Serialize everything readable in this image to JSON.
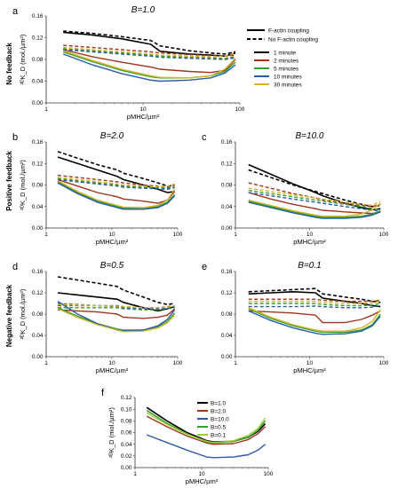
{
  "row_labels": [
    "No feedback",
    "Positive feedback",
    "Negative feedback"
  ],
  "legend_main": {
    "coupling": [
      "F-actin coupling",
      "No F-actin coupling"
    ],
    "times": [
      "1 minute",
      "2 minutes",
      "5 minutes",
      "10 minutes",
      "30 minutes"
    ]
  },
  "legend_f": [
    "B=1.0",
    "B=2.0",
    "B=10.0",
    "B=0.5",
    "B=0.1"
  ],
  "colors": {
    "1 minute": "#000000",
    "2 minutes": "#a2331c",
    "5 minutes": "#33a02c",
    "10 minutes": "#2a5aa8",
    "30 minutes": "#d6b428",
    "B=1.0": "#000000",
    "B=2.0": "#a2331c",
    "B=10.0": "#2a5aa8",
    "B=0.5": "#33a02c",
    "B=0.1": "#9acd32"
  },
  "chart_data": [
    {
      "panel": "a",
      "type": "line",
      "title": "B=1.0",
      "xlabel": "pMHC/µm²",
      "ylabel": "²ᴰK_D (mol./µm²)",
      "xscale": "log",
      "xlim": [
        1,
        100
      ],
      "ylim": [
        0,
        0.16
      ],
      "yticks": [
        "0.00",
        "0.04",
        "0.08",
        "0.12",
        "0.16"
      ],
      "x": [
        1.5,
        3,
        6,
        12,
        15,
        30,
        50,
        70,
        90
      ],
      "series": [
        {
          "time": "1 minute",
          "coupling": "F-actin coupling",
          "values": [
            0.13,
            0.125,
            0.118,
            0.108,
            0.095,
            0.09,
            0.088,
            0.086,
            0.092
          ]
        },
        {
          "time": "1 minute",
          "coupling": "No F-actin coupling",
          "values": [
            0.132,
            0.128,
            0.122,
            0.115,
            0.105,
            0.096,
            0.092,
            0.09,
            0.094
          ]
        },
        {
          "time": "2 minutes",
          "coupling": "F-actin coupling",
          "values": [
            0.098,
            0.085,
            0.075,
            0.066,
            0.062,
            0.058,
            0.056,
            0.06,
            0.08
          ]
        },
        {
          "time": "2 minutes",
          "coupling": "No F-actin coupling",
          "values": [
            0.106,
            0.102,
            0.098,
            0.094,
            0.092,
            0.089,
            0.087,
            0.086,
            0.088
          ]
        },
        {
          "time": "5 minutes",
          "coupling": "F-actin coupling",
          "values": [
            0.094,
            0.076,
            0.06,
            0.048,
            0.046,
            0.046,
            0.05,
            0.058,
            0.075
          ]
        },
        {
          "time": "5 minutes",
          "coupling": "No F-actin coupling",
          "values": [
            0.1,
            0.096,
            0.092,
            0.088,
            0.086,
            0.084,
            0.083,
            0.082,
            0.085
          ]
        },
        {
          "time": "10 minutes",
          "coupling": "F-actin coupling",
          "values": [
            0.09,
            0.07,
            0.054,
            0.042,
            0.04,
            0.042,
            0.046,
            0.055,
            0.07
          ]
        },
        {
          "time": "10 minutes",
          "coupling": "No F-actin coupling",
          "values": [
            0.098,
            0.094,
            0.09,
            0.086,
            0.084,
            0.082,
            0.081,
            0.08,
            0.083
          ]
        },
        {
          "time": "30 minutes",
          "coupling": "F-actin coupling",
          "values": [
            0.096,
            0.078,
            0.062,
            0.05,
            0.047,
            0.046,
            0.05,
            0.062,
            0.082
          ]
        },
        {
          "time": "30 minutes",
          "coupling": "No F-actin coupling",
          "values": [
            0.102,
            0.098,
            0.094,
            0.09,
            0.088,
            0.086,
            0.085,
            0.086,
            0.092
          ]
        }
      ]
    },
    {
      "panel": "b",
      "type": "line",
      "title": "B=2.0",
      "xlabel": "pMHC/µm²",
      "ylabel": "²ᴰK_D (mol./µm²)",
      "xscale": "log",
      "xlim": [
        1,
        100
      ],
      "ylim": [
        0,
        0.16
      ],
      "yticks": [
        "0.00",
        "0.04",
        "0.08",
        "0.12",
        "0.16"
      ],
      "x": [
        1.5,
        3,
        6,
        12,
        15,
        30,
        50,
        70,
        90
      ],
      "series": [
        {
          "time": "1 minute",
          "coupling": "F-actin coupling",
          "values": [
            0.132,
            0.12,
            0.108,
            0.096,
            0.09,
            0.08,
            0.072,
            0.066,
            0.068
          ]
        },
        {
          "time": "1 minute",
          "coupling": "No F-actin coupling",
          "values": [
            0.142,
            0.13,
            0.118,
            0.108,
            0.102,
            0.092,
            0.084,
            0.078,
            0.08
          ]
        },
        {
          "time": "2 minutes",
          "coupling": "F-actin coupling",
          "values": [
            0.09,
            0.078,
            0.066,
            0.058,
            0.054,
            0.05,
            0.046,
            0.052,
            0.068
          ]
        },
        {
          "time": "2 minutes",
          "coupling": "No F-actin coupling",
          "values": [
            0.098,
            0.094,
            0.09,
            0.086,
            0.084,
            0.08,
            0.078,
            0.076,
            0.08
          ]
        },
        {
          "time": "5 minutes",
          "coupling": "F-actin coupling",
          "values": [
            0.086,
            0.066,
            0.05,
            0.04,
            0.037,
            0.036,
            0.04,
            0.048,
            0.062
          ]
        },
        {
          "time": "5 minutes",
          "coupling": "No F-actin coupling",
          "values": [
            0.092,
            0.088,
            0.084,
            0.08,
            0.078,
            0.076,
            0.075,
            0.074,
            0.077
          ]
        },
        {
          "time": "10 minutes",
          "coupling": "F-actin coupling",
          "values": [
            0.084,
            0.064,
            0.048,
            0.038,
            0.035,
            0.035,
            0.038,
            0.046,
            0.06
          ]
        },
        {
          "time": "10 minutes",
          "coupling": "No F-actin coupling",
          "values": [
            0.09,
            0.086,
            0.082,
            0.078,
            0.076,
            0.074,
            0.073,
            0.072,
            0.075
          ]
        },
        {
          "time": "30 minutes",
          "coupling": "F-actin coupling",
          "values": [
            0.088,
            0.068,
            0.052,
            0.042,
            0.039,
            0.038,
            0.042,
            0.052,
            0.072
          ]
        },
        {
          "time": "30 minutes",
          "coupling": "No F-actin coupling",
          "values": [
            0.094,
            0.09,
            0.086,
            0.082,
            0.08,
            0.078,
            0.077,
            0.078,
            0.082
          ]
        }
      ]
    },
    {
      "panel": "c",
      "type": "line",
      "title": "B=10.0",
      "xlabel": "pMHC/µm²",
      "ylabel": "",
      "xscale": "log",
      "xlim": [
        1,
        100
      ],
      "ylim": [
        0,
        0.16
      ],
      "yticks": [
        "0.00",
        "0.04",
        "0.08",
        "0.12",
        "0.16"
      ],
      "x": [
        1.5,
        3,
        6,
        12,
        15,
        30,
        50,
        70,
        90
      ],
      "series": [
        {
          "time": "1 minute",
          "coupling": "F-actin coupling",
          "values": [
            0.118,
            0.1,
            0.082,
            0.066,
            0.06,
            0.046,
            0.038,
            0.034,
            0.036
          ]
        },
        {
          "time": "1 minute",
          "coupling": "No F-actin coupling",
          "values": [
            0.108,
            0.094,
            0.08,
            0.068,
            0.064,
            0.052,
            0.044,
            0.04,
            0.042
          ]
        },
        {
          "time": "2 minutes",
          "coupling": "F-actin coupling",
          "values": [
            0.066,
            0.054,
            0.044,
            0.036,
            0.033,
            0.03,
            0.028,
            0.027,
            0.03
          ]
        },
        {
          "time": "2 minutes",
          "coupling": "No F-actin coupling",
          "values": [
            0.084,
            0.074,
            0.064,
            0.056,
            0.052,
            0.046,
            0.042,
            0.04,
            0.044
          ]
        },
        {
          "time": "5 minutes",
          "coupling": "F-actin coupling",
          "values": [
            0.05,
            0.04,
            0.03,
            0.022,
            0.02,
            0.02,
            0.022,
            0.026,
            0.032
          ]
        },
        {
          "time": "5 minutes",
          "coupling": "No F-actin coupling",
          "values": [
            0.07,
            0.064,
            0.058,
            0.052,
            0.05,
            0.044,
            0.04,
            0.036,
            0.034
          ]
        },
        {
          "time": "10 minutes",
          "coupling": "F-actin coupling",
          "values": [
            0.048,
            0.038,
            0.028,
            0.02,
            0.018,
            0.018,
            0.02,
            0.024,
            0.03
          ]
        },
        {
          "time": "10 minutes",
          "coupling": "No F-actin coupling",
          "values": [
            0.066,
            0.06,
            0.054,
            0.048,
            0.046,
            0.04,
            0.036,
            0.033,
            0.032
          ]
        },
        {
          "time": "30 minutes",
          "coupling": "F-actin coupling",
          "values": [
            0.052,
            0.042,
            0.032,
            0.024,
            0.022,
            0.022,
            0.026,
            0.034,
            0.046
          ]
        },
        {
          "time": "30 minutes",
          "coupling": "No F-actin coupling",
          "values": [
            0.074,
            0.068,
            0.062,
            0.056,
            0.054,
            0.048,
            0.044,
            0.042,
            0.05
          ]
        }
      ]
    },
    {
      "panel": "d",
      "type": "line",
      "title": "B=0.5",
      "xlabel": "pMHC/µm²",
      "ylabel": "²ᴰK_D (mol./µm²)",
      "xscale": "log",
      "xlim": [
        1,
        100
      ],
      "ylim": [
        0,
        0.16
      ],
      "yticks": [
        "0.00",
        "0.04",
        "0.08",
        "0.12",
        "0.16"
      ],
      "x": [
        1.5,
        3,
        6,
        12,
        15,
        30,
        50,
        70,
        90
      ],
      "series": [
        {
          "time": "1 minute",
          "coupling": "F-actin coupling",
          "values": [
            0.12,
            0.116,
            0.112,
            0.108,
            0.102,
            0.092,
            0.086,
            0.09,
            0.094
          ]
        },
        {
          "time": "1 minute",
          "coupling": "No F-actin coupling",
          "values": [
            0.15,
            0.144,
            0.138,
            0.132,
            0.125,
            0.112,
            0.102,
            0.098,
            0.1
          ]
        },
        {
          "time": "2 minutes",
          "coupling": "F-actin coupling",
          "values": [
            0.088,
            0.086,
            0.084,
            0.08,
            0.074,
            0.072,
            0.074,
            0.078,
            0.09
          ]
        },
        {
          "time": "2 minutes",
          "coupling": "No F-actin coupling",
          "values": [
            0.096,
            0.096,
            0.096,
            0.096,
            0.094,
            0.092,
            0.092,
            0.094,
            0.096
          ]
        },
        {
          "time": "5 minutes",
          "coupling": "F-actin coupling",
          "values": [
            0.092,
            0.076,
            0.062,
            0.052,
            0.05,
            0.05,
            0.056,
            0.066,
            0.082
          ]
        },
        {
          "time": "5 minutes",
          "coupling": "No F-actin coupling",
          "values": [
            0.092,
            0.092,
            0.092,
            0.092,
            0.09,
            0.088,
            0.088,
            0.09,
            0.092
          ]
        },
        {
          "time": "10 minutes",
          "coupling": "F-actin coupling",
          "values": [
            0.104,
            0.08,
            0.062,
            0.05,
            0.048,
            0.05,
            0.058,
            0.07,
            0.088
          ]
        },
        {
          "time": "10 minutes",
          "coupling": "No F-actin coupling",
          "values": [
            0.1,
            0.098,
            0.096,
            0.094,
            0.092,
            0.09,
            0.09,
            0.091,
            0.094
          ]
        },
        {
          "time": "30 minutes",
          "coupling": "F-actin coupling",
          "values": [
            0.09,
            0.074,
            0.06,
            0.05,
            0.047,
            0.048,
            0.054,
            0.064,
            0.078
          ]
        },
        {
          "time": "30 minutes",
          "coupling": "No F-actin coupling",
          "values": [
            0.098,
            0.097,
            0.096,
            0.095,
            0.094,
            0.092,
            0.092,
            0.093,
            0.096
          ]
        }
      ]
    },
    {
      "panel": "e",
      "type": "line",
      "title": "B=0.1",
      "xlabel": "pMHC/µm²",
      "ylabel": "",
      "xscale": "log",
      "xlim": [
        1,
        100
      ],
      "ylim": [
        0,
        0.16
      ],
      "yticks": [
        "0.00",
        "0.04",
        "0.08",
        "0.12",
        "0.16"
      ],
      "x": [
        1.5,
        3,
        6,
        12,
        15,
        30,
        50,
        70,
        90
      ],
      "series": [
        {
          "time": "1 minute",
          "coupling": "F-actin coupling",
          "values": [
            0.118,
            0.12,
            0.122,
            0.12,
            0.11,
            0.104,
            0.1,
            0.096,
            0.094
          ]
        },
        {
          "time": "1 minute",
          "coupling": "No F-actin coupling",
          "values": [
            0.122,
            0.124,
            0.126,
            0.128,
            0.118,
            0.112,
            0.108,
            0.104,
            0.102
          ]
        },
        {
          "time": "2 minutes",
          "coupling": "F-actin coupling",
          "values": [
            0.086,
            0.084,
            0.082,
            0.078,
            0.064,
            0.064,
            0.07,
            0.078,
            0.086
          ]
        },
        {
          "time": "2 minutes",
          "coupling": "No F-actin coupling",
          "values": [
            0.108,
            0.108,
            0.108,
            0.108,
            0.106,
            0.104,
            0.104,
            0.104,
            0.106
          ]
        },
        {
          "time": "5 minutes",
          "coupling": "F-actin coupling",
          "values": [
            0.09,
            0.072,
            0.058,
            0.048,
            0.046,
            0.046,
            0.05,
            0.06,
            0.08
          ]
        },
        {
          "time": "5 minutes",
          "coupling": "No F-actin coupling",
          "values": [
            0.1,
            0.1,
            0.1,
            0.1,
            0.098,
            0.096,
            0.096,
            0.097,
            0.1
          ]
        },
        {
          "time": "10 minutes",
          "coupling": "F-actin coupling",
          "values": [
            0.086,
            0.068,
            0.054,
            0.044,
            0.042,
            0.043,
            0.048,
            0.058,
            0.076
          ]
        },
        {
          "time": "10 minutes",
          "coupling": "No F-actin coupling",
          "values": [
            0.094,
            0.094,
            0.094,
            0.095,
            0.094,
            0.092,
            0.092,
            0.093,
            0.096
          ]
        },
        {
          "time": "30 minutes",
          "coupling": "F-actin coupling",
          "values": [
            0.092,
            0.074,
            0.06,
            0.05,
            0.048,
            0.048,
            0.054,
            0.066,
            0.088
          ]
        },
        {
          "time": "30 minutes",
          "coupling": "No F-actin coupling",
          "values": [
            0.104,
            0.104,
            0.104,
            0.104,
            0.102,
            0.1,
            0.1,
            0.101,
            0.104
          ]
        }
      ]
    },
    {
      "panel": "f",
      "type": "line",
      "title": "",
      "xlabel": "pMHC/µm²",
      "ylabel": "²ᴰK_D (mol./µm²)",
      "xscale": "log",
      "xlim": [
        1,
        100
      ],
      "ylim": [
        0,
        0.12
      ],
      "yticks": [
        "0.00",
        "0.02",
        "0.04",
        "0.06",
        "0.08",
        "0.10",
        "0.12"
      ],
      "x": [
        1.5,
        3,
        6,
        12,
        15,
        30,
        50,
        70,
        90
      ],
      "series": [
        {
          "name": "B=1.0",
          "values": [
            0.103,
            0.08,
            0.06,
            0.046,
            0.044,
            0.045,
            0.052,
            0.062,
            0.075
          ]
        },
        {
          "name": "B=2.0",
          "values": [
            0.088,
            0.07,
            0.054,
            0.042,
            0.04,
            0.041,
            0.048,
            0.058,
            0.07
          ]
        },
        {
          "name": "B=10.0",
          "values": [
            0.056,
            0.043,
            0.03,
            0.018,
            0.017,
            0.018,
            0.022,
            0.03,
            0.04
          ]
        },
        {
          "name": "B=0.5",
          "values": [
            0.098,
            0.076,
            0.058,
            0.044,
            0.042,
            0.045,
            0.052,
            0.064,
            0.08
          ]
        },
        {
          "name": "B=0.1",
          "values": [
            0.094,
            0.074,
            0.057,
            0.045,
            0.043,
            0.046,
            0.055,
            0.067,
            0.085
          ]
        }
      ]
    }
  ]
}
